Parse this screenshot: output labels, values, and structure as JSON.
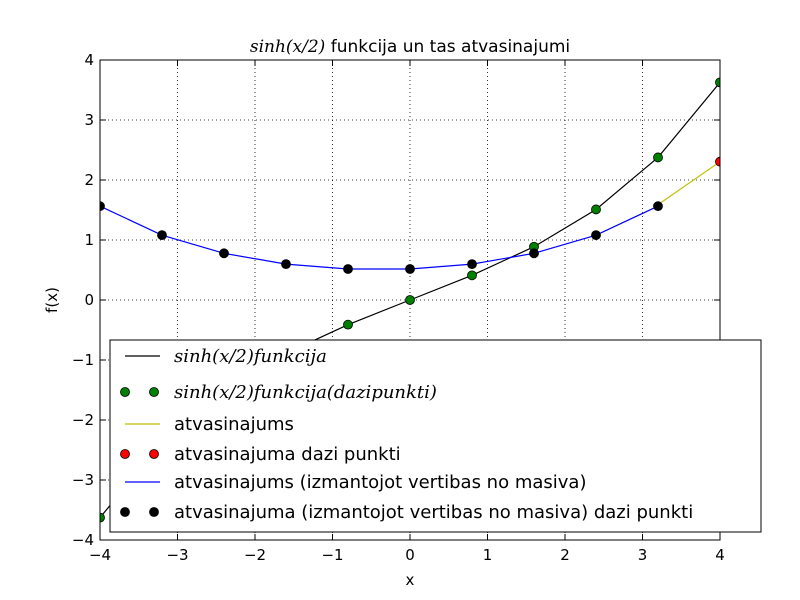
{
  "chart_data": {
    "type": "line",
    "title_math": "sinh(x/2)",
    "title_text": " funkcija un tas atvasinajumi",
    "xlabel": "x",
    "ylabel": "f(x)",
    "xlim": [
      -4,
      4
    ],
    "ylim": [
      -4,
      4
    ],
    "grid": true,
    "legend_position": "lower-right",
    "x_ticks": [
      -4,
      -3,
      -2,
      -1,
      0,
      1,
      2,
      3,
      4
    ],
    "x_tick_labels": [
      "−4",
      "−3",
      "−2",
      "−1",
      "0",
      "1",
      "2",
      "3",
      "4"
    ],
    "y_ticks": [
      -4,
      -3,
      -2,
      -1,
      0,
      1,
      2,
      3,
      4
    ],
    "y_tick_labels": [
      "−4",
      "−3",
      "−2",
      "−1",
      "0",
      "1",
      "2",
      "3",
      "4"
    ],
    "series": [
      {
        "name": "sinh(x/2)funkcija",
        "name_is_math": true,
        "style": "line",
        "color": "#000000",
        "x": [
          -4.0,
          -3.2,
          -2.4,
          -1.6,
          -0.8,
          0.0,
          0.8,
          1.6,
          2.4,
          3.2,
          4.0
        ],
        "y": [
          -3.627,
          -2.376,
          -1.509,
          -0.888,
          -0.411,
          0.0,
          0.411,
          0.888,
          1.509,
          2.376,
          3.627
        ]
      },
      {
        "name": "sinh(x/2)funkcija(dazipunkti)",
        "name_is_math": true,
        "style": "markers",
        "color": "#008000",
        "x": [
          -4.0,
          -3.2,
          -2.4,
          -1.6,
          -0.8,
          0.0,
          0.8,
          1.6,
          2.4,
          3.2,
          4.0
        ],
        "y": [
          -3.627,
          -2.376,
          -1.509,
          -0.888,
          -0.411,
          0.0,
          0.411,
          0.888,
          1.509,
          2.376,
          3.627
        ]
      },
      {
        "name": "atvasinajums",
        "name_is_math": false,
        "style": "line",
        "color": "#bfbf00",
        "x": [
          3.2,
          4.0
        ],
        "y": [
          1.589,
          2.305
        ]
      },
      {
        "name": "atvasinajuma dazi punkti",
        "name_is_math": false,
        "style": "markers",
        "color": "#ff0000",
        "x": [
          4.0
        ],
        "y": [
          2.305
        ]
      },
      {
        "name": "atvasinajums (izmantojot vertibas no masiva)",
        "name_is_math": false,
        "style": "line",
        "color": "#0000ff",
        "x": [
          -4.0,
          -3.2,
          -2.4,
          -1.6,
          -0.8,
          0.0,
          0.8,
          1.6,
          2.4,
          3.2
        ],
        "y": [
          1.564,
          1.081,
          0.778,
          0.598,
          0.517,
          0.517,
          0.598,
          0.778,
          1.081,
          1.564
        ]
      },
      {
        "name": "atvasinajuma (izmantojot vertibas no masiva) dazi punkti",
        "name_is_math": false,
        "style": "markers",
        "color": "#000000",
        "x": [
          -4.0,
          -3.2,
          -2.4,
          -1.6,
          -0.8,
          0.0,
          0.8,
          1.6,
          2.4,
          3.2
        ],
        "y": [
          1.564,
          1.081,
          0.778,
          0.598,
          0.517,
          0.517,
          0.598,
          0.778,
          1.081,
          1.564
        ]
      }
    ]
  }
}
